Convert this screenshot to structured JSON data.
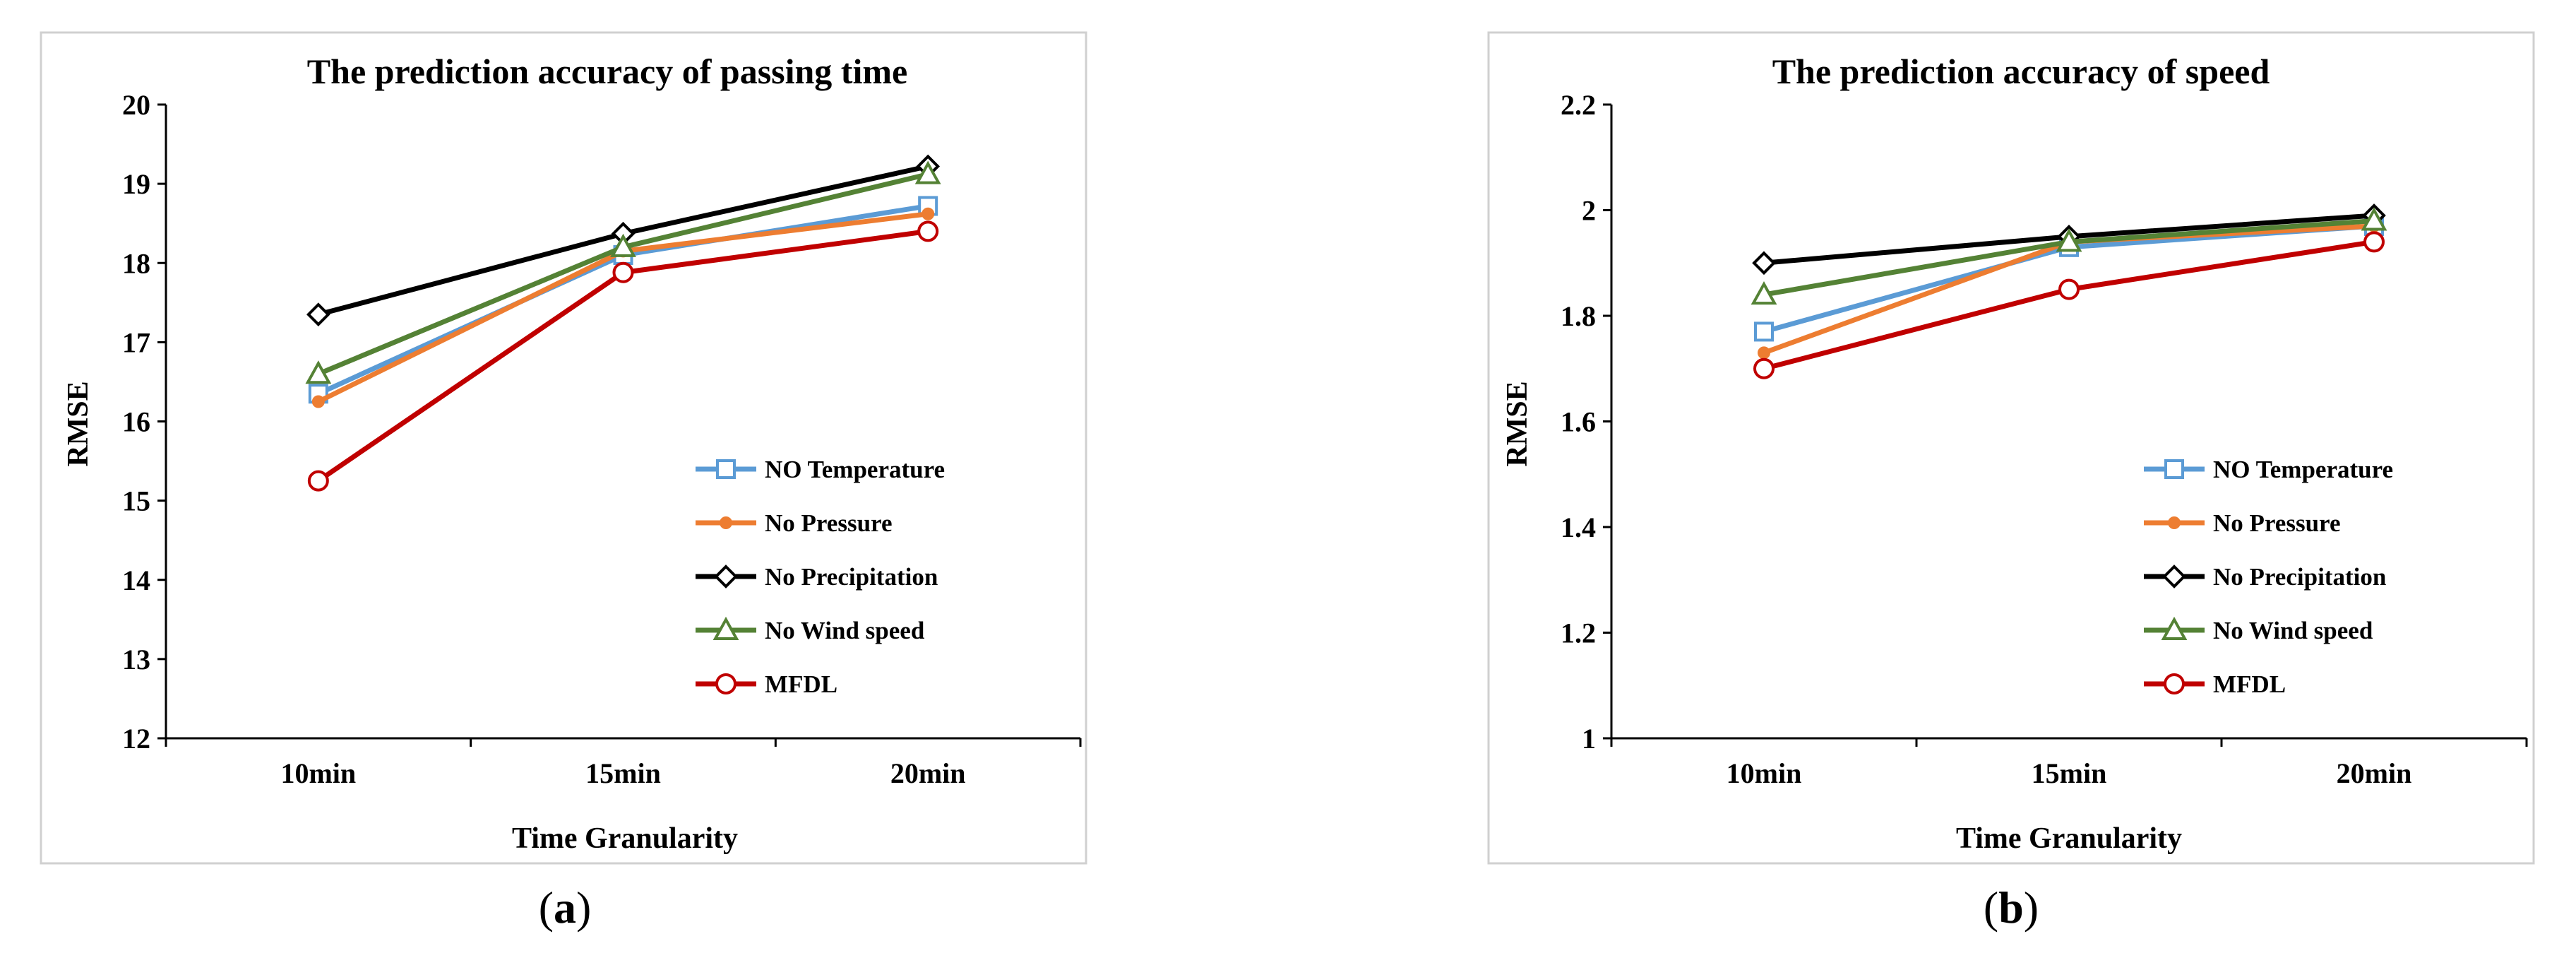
{
  "chart_data": [
    {
      "panel_label": "a",
      "type": "line",
      "title": "The prediction accuracy of passing time",
      "xlabel": "Time Granularity",
      "ylabel": "RMSE",
      "categories": [
        "10min",
        "15min",
        "20min"
      ],
      "ylim": [
        12,
        20
      ],
      "yticks": [
        12,
        13,
        14,
        15,
        16,
        17,
        18,
        19,
        20
      ],
      "ytick_labels": [
        "12",
        "13",
        "14",
        "15",
        "16",
        "17",
        "18",
        "19",
        "20"
      ],
      "legend_position": "bottom-right",
      "grid": false,
      "series": [
        {
          "name": "NO Temperature",
          "values": [
            16.35,
            18.1,
            18.72
          ],
          "color": "#5b9bd5",
          "marker": "square"
        },
        {
          "name": "No Pressure",
          "values": [
            16.25,
            18.15,
            18.62
          ],
          "color": "#ed7d31",
          "marker": "dot"
        },
        {
          "name": "No Precipitation",
          "values": [
            17.35,
            18.37,
            19.22
          ],
          "color": "#000000",
          "marker": "diamond"
        },
        {
          "name": "No Wind speed",
          "values": [
            16.6,
            18.2,
            19.12
          ],
          "color": "#548235",
          "marker": "triangle"
        },
        {
          "name": "MFDL",
          "values": [
            15.25,
            17.88,
            18.4
          ],
          "color": "#c00000",
          "marker": "circle"
        }
      ]
    },
    {
      "panel_label": "b",
      "type": "line",
      "title": "The prediction accuracy of speed",
      "xlabel": "Time Granularity",
      "ylabel": "RMSE",
      "categories": [
        "10min",
        "15min",
        "20min"
      ],
      "ylim": [
        1,
        2.2
      ],
      "yticks": [
        1,
        1.2,
        1.4,
        1.6,
        1.8,
        2,
        2.2
      ],
      "ytick_labels": [
        "1",
        "1.2",
        "1.4",
        "1.6",
        "1.8",
        "2",
        "2.2"
      ],
      "legend_position": "bottom-right",
      "grid": false,
      "series": [
        {
          "name": "NO Temperature",
          "values": [
            1.77,
            1.93,
            1.97
          ],
          "color": "#5b9bd5",
          "marker": "square"
        },
        {
          "name": "No Pressure",
          "values": [
            1.73,
            1.94,
            1.97
          ],
          "color": "#ed7d31",
          "marker": "dot"
        },
        {
          "name": "No Precipitation",
          "values": [
            1.9,
            1.95,
            1.99
          ],
          "color": "#000000",
          "marker": "diamond"
        },
        {
          "name": "No Wind speed",
          "values": [
            1.84,
            1.94,
            1.98
          ],
          "color": "#548235",
          "marker": "triangle"
        },
        {
          "name": "MFDL",
          "values": [
            1.7,
            1.85,
            1.94
          ],
          "color": "#c00000",
          "marker": "circle"
        }
      ]
    }
  ],
  "captions": {
    "a": {
      "open": "(",
      "letter": "a",
      "close": ")"
    },
    "b": {
      "open": "(",
      "letter": "b",
      "close": ")"
    }
  }
}
